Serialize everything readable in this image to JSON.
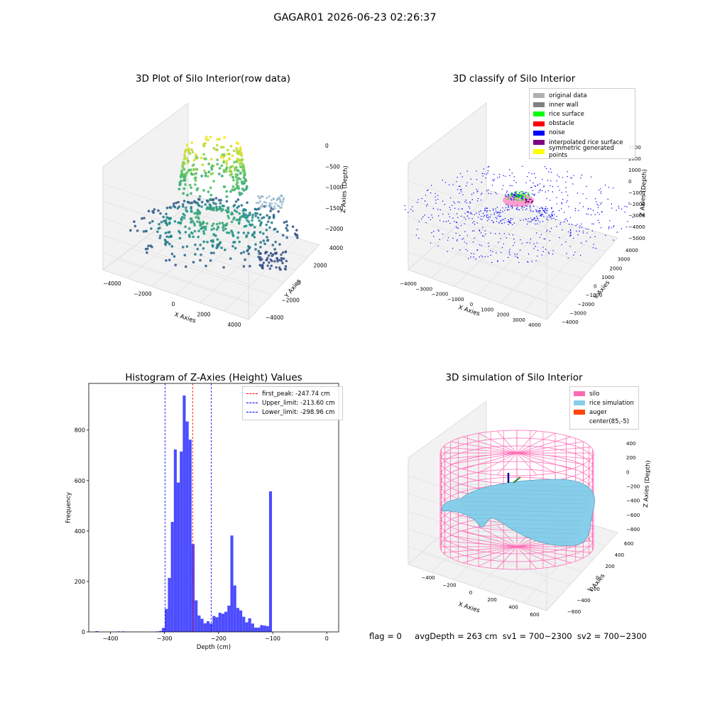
{
  "suptitle": "GAGAR01 2026-06-23 02:26:37",
  "footer": {
    "flag": "flag = 0",
    "metrics": "avgDepth = 263 cm  sv1 = 700~2300  sv2 = 700~2300"
  },
  "chart_data": [
    {
      "type": "scatter3d",
      "title": "3D Plot of Silo Interior(row data)",
      "xlabel": "X Axies",
      "ylabel": "Y Axies",
      "zlabel": "Z Axies (Depth)",
      "x_ticks": [
        "-4000",
        "-2000",
        "0",
        "2000",
        "4000"
      ],
      "y_ticks": [
        "-4000",
        "-2000",
        "0",
        "2000",
        "4000"
      ],
      "z_ticks": [
        "0",
        "-500",
        "-1000",
        "-1500",
        "-2000"
      ],
      "colormap": "viridis"
    },
    {
      "type": "scatter3d",
      "title": "3D classify of Silo Interior",
      "xlabel": "X Axies",
      "ylabel": "Y Axies",
      "zlabel": "Z Axies (Depth)",
      "x_ticks": [
        "-4000",
        "-3000",
        "-2000",
        "-1000",
        "0",
        "1000",
        "2000",
        "3000",
        "4000"
      ],
      "y_ticks": [
        "-4000",
        "-3000",
        "-2000",
        "-1000",
        "0",
        "1000",
        "2000",
        "3000",
        "4000"
      ],
      "z_ticks": [
        "3000",
        "2000",
        "1000",
        "0",
        "-1000",
        "-2000",
        "-3000",
        "-4000",
        "-5000"
      ],
      "legend": [
        {
          "label": "original data",
          "color": "#b0b0b0"
        },
        {
          "label": "inner wall",
          "color": "#808080"
        },
        {
          "label": "rice surface",
          "color": "#00ff00"
        },
        {
          "label": "obstacle",
          "color": "#ff0000"
        },
        {
          "label": "noise",
          "color": "#0000ff"
        },
        {
          "label": "interpolated rice surface",
          "color": "#800080"
        },
        {
          "label": "symmetric generated points",
          "color": "#ffff00"
        }
      ]
    },
    {
      "type": "bar",
      "title": "Histogram of Z-Axies (Height) Values",
      "xlabel": "Depth (cm)",
      "ylabel": "Frequency",
      "xlim": [
        -440,
        22
      ],
      "ylim": [
        0,
        985
      ],
      "x_ticks": [
        -400,
        -300,
        -200,
        -100,
        0
      ],
      "y_ticks": [
        0,
        200,
        400,
        600,
        800
      ],
      "bar_color": "#0000ff",
      "bin_width": 5.4,
      "bins": [
        {
          "x": -425,
          "count": 3
        },
        {
          "x": -385,
          "count": 2
        },
        {
          "x": -376,
          "count": 2
        },
        {
          "x": -365,
          "count": 1
        },
        {
          "x": -353,
          "count": 1
        },
        {
          "x": -340,
          "count": 1
        },
        {
          "x": -313,
          "count": 2
        },
        {
          "x": -307,
          "count": 4
        },
        {
          "x": -302,
          "count": 16
        },
        {
          "x": -296.5,
          "count": 91
        },
        {
          "x": -291,
          "count": 214
        },
        {
          "x": -285.5,
          "count": 436
        },
        {
          "x": -280,
          "count": 723
        },
        {
          "x": -274.5,
          "count": 592
        },
        {
          "x": -269,
          "count": 715
        },
        {
          "x": -263.5,
          "count": 937
        },
        {
          "x": -258,
          "count": 834
        },
        {
          "x": -252.5,
          "count": 762
        },
        {
          "x": -247,
          "count": 348
        },
        {
          "x": -241.5,
          "count": 125
        },
        {
          "x": -236,
          "count": 65
        },
        {
          "x": -230.5,
          "count": 52
        },
        {
          "x": -225,
          "count": 34
        },
        {
          "x": -219.5,
          "count": 42
        },
        {
          "x": -214,
          "count": 33
        },
        {
          "x": -208.5,
          "count": 63
        },
        {
          "x": -203,
          "count": 58
        },
        {
          "x": -197.5,
          "count": 76
        },
        {
          "x": -192,
          "count": 72
        },
        {
          "x": -186.5,
          "count": 80
        },
        {
          "x": -181,
          "count": 104
        },
        {
          "x": -175.5,
          "count": 382
        },
        {
          "x": -170,
          "count": 184
        },
        {
          "x": -164.5,
          "count": 95
        },
        {
          "x": -159,
          "count": 85
        },
        {
          "x": -153.5,
          "count": 60
        },
        {
          "x": -148,
          "count": 38
        },
        {
          "x": -142.5,
          "count": 54
        },
        {
          "x": -137,
          "count": 33
        },
        {
          "x": -131.5,
          "count": 17
        },
        {
          "x": -126,
          "count": 17
        },
        {
          "x": -120.5,
          "count": 27
        },
        {
          "x": -115,
          "count": 25
        },
        {
          "x": -109.5,
          "count": 23
        },
        {
          "x": -104,
          "count": 557
        }
      ],
      "vlines": [
        {
          "label": "first_peak: -247.74 cm",
          "x": -247.74,
          "color": "#ff0000"
        },
        {
          "label": "Upper_limit: -213.60 cm",
          "x": -213.6,
          "color": "#0000ff"
        },
        {
          "label": "Lower_limit: -298.96 cm",
          "x": -298.96,
          "color": "#0000ff"
        }
      ]
    },
    {
      "type": "surface3d",
      "title": "3D simulation of Silo Interior",
      "xlabel": "X Axies",
      "ylabel": "Y Axies",
      "zlabel": "Z Axies (Depth)",
      "x_ticks": [
        "-400",
        "-200",
        "0",
        "200",
        "400",
        "600"
      ],
      "y_ticks": [
        "600",
        "400",
        "200",
        "0",
        "-200",
        "-400",
        "-600"
      ],
      "z_ticks": [
        "400",
        "200",
        "0",
        "-200",
        "-400",
        "-600",
        "-800"
      ],
      "legend": [
        {
          "label": "silo",
          "color": "#ff69b4"
        },
        {
          "label": "rice simulation",
          "color": "#87ceeb"
        },
        {
          "label": "auger",
          "color": "#ff4500"
        },
        {
          "label": "center(85,-5)",
          "color": "#ffffff"
        }
      ]
    }
  ]
}
